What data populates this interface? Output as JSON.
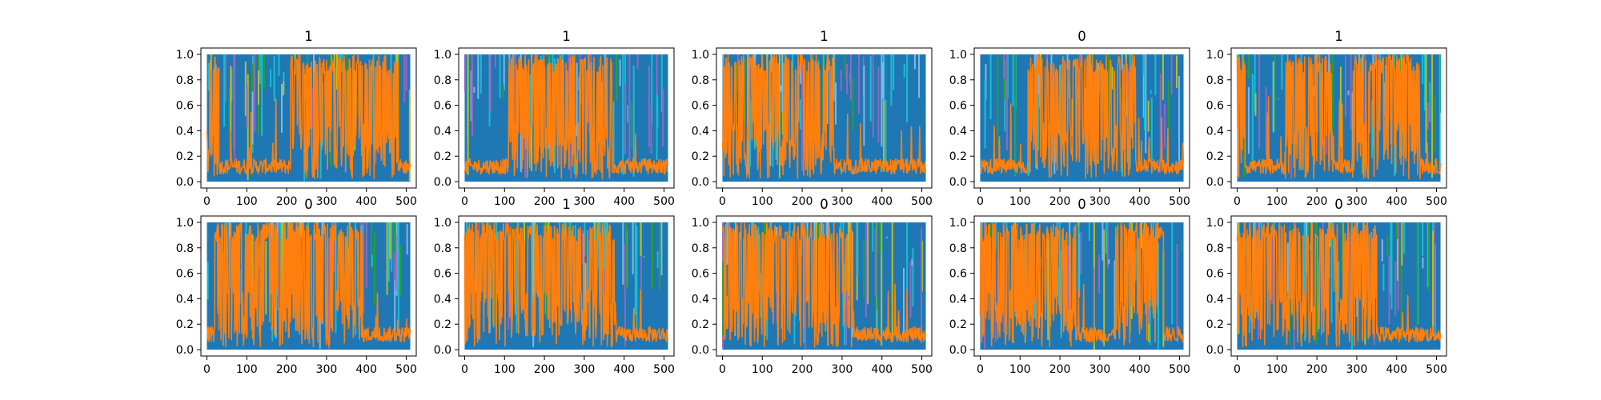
{
  "chart_data": {
    "type": "line",
    "layout": {
      "rows": 2,
      "cols": 5
    },
    "xlim": [
      -15,
      525
    ],
    "ylim": [
      -0.05,
      1.05
    ],
    "xticks": [
      0,
      100,
      200,
      300,
      400,
      500
    ],
    "yticks": [
      0.0,
      0.2,
      0.4,
      0.6,
      0.8,
      1.0
    ],
    "xtick_labels": [
      "0",
      "100",
      "200",
      "300",
      "400",
      "500"
    ],
    "ytick_labels": [
      "0.0",
      "0.2",
      "0.4",
      "0.6",
      "0.8",
      "1.0"
    ],
    "grid": false,
    "legend": "none",
    "series_colors": {
      "blue": "#1f77b4",
      "orange": "#ff7f0e",
      "cyan": "#17becf",
      "green": "#2ca02c",
      "olive": "#bcbd22",
      "purple": "#9467bd"
    },
    "subplots": [
      {
        "title": "1",
        "orange_segments": [
          [
            0,
            30,
            "high"
          ],
          [
            30,
            210,
            "low"
          ],
          [
            210,
            480,
            "high"
          ],
          [
            480,
            510,
            "low"
          ]
        ]
      },
      {
        "title": "1",
        "orange_segments": [
          [
            0,
            110,
            "low"
          ],
          [
            110,
            370,
            "high"
          ],
          [
            370,
            510,
            "low"
          ]
        ]
      },
      {
        "title": "1",
        "orange_segments": [
          [
            0,
            280,
            "high"
          ],
          [
            280,
            510,
            "low"
          ]
        ]
      },
      {
        "title": "0",
        "orange_segments": [
          [
            0,
            120,
            "low"
          ],
          [
            120,
            390,
            "high"
          ],
          [
            390,
            510,
            "low"
          ]
        ]
      },
      {
        "title": "1",
        "orange_segments": [
          [
            0,
            20,
            "high"
          ],
          [
            20,
            120,
            "low"
          ],
          [
            120,
            240,
            "high"
          ],
          [
            240,
            290,
            "low"
          ],
          [
            290,
            460,
            "high"
          ],
          [
            460,
            510,
            "low"
          ]
        ]
      },
      {
        "title": "0",
        "orange_segments": [
          [
            0,
            20,
            "low"
          ],
          [
            20,
            390,
            "high"
          ],
          [
            390,
            510,
            "low"
          ]
        ]
      },
      {
        "title": "1",
        "orange_segments": [
          [
            0,
            380,
            "high"
          ],
          [
            380,
            510,
            "low"
          ]
        ]
      },
      {
        "title": "0",
        "orange_segments": [
          [
            0,
            330,
            "high"
          ],
          [
            330,
            510,
            "low"
          ]
        ]
      },
      {
        "title": "0",
        "orange_segments": [
          [
            0,
            240,
            "high"
          ],
          [
            240,
            340,
            "low"
          ],
          [
            340,
            460,
            "high"
          ],
          [
            460,
            510,
            "low"
          ]
        ]
      },
      {
        "title": "0",
        "orange_segments": [
          [
            0,
            350,
            "high"
          ],
          [
            350,
            510,
            "low"
          ]
        ]
      }
    ]
  }
}
